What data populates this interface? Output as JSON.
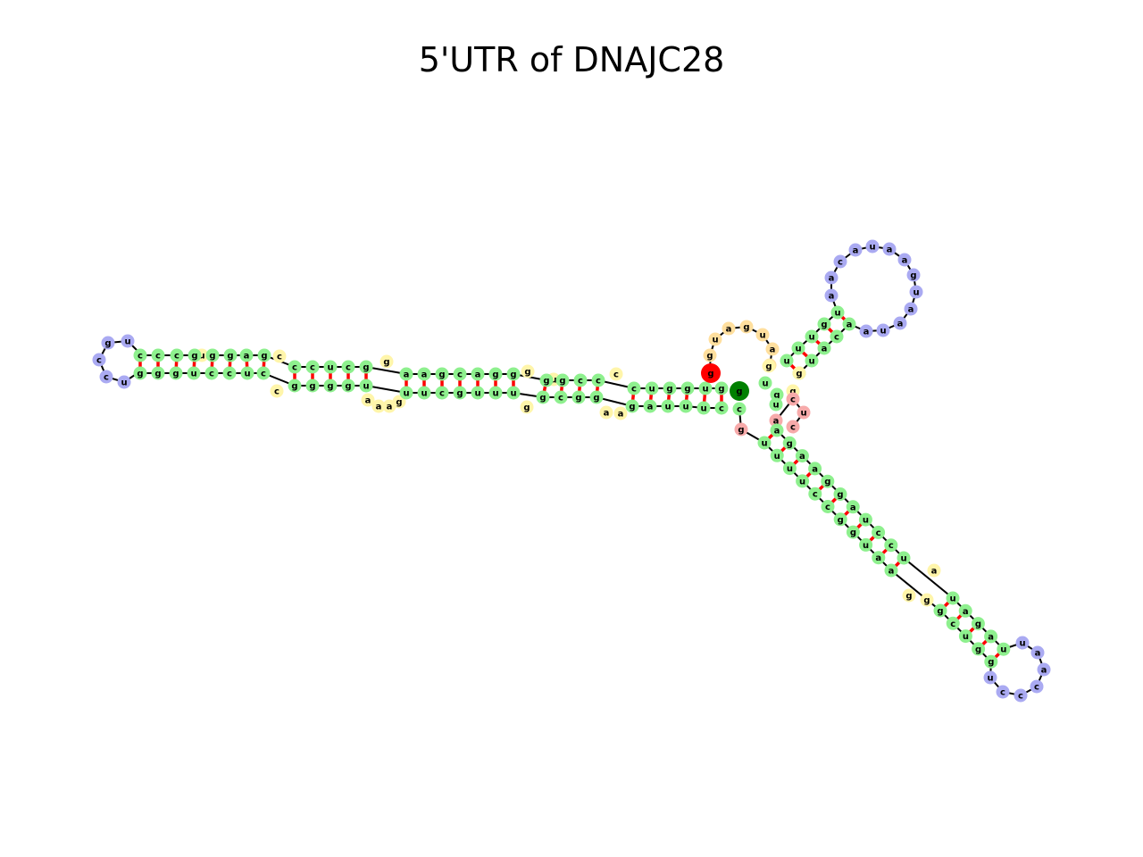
{
  "title": "5'UTR of DNAJC28",
  "colors": {
    "stem": "#8ef08e",
    "hairpin_loop": "#aaaaf2",
    "interior_loop": "#fff5aa",
    "multiloop": "#ffdf9e",
    "unpaired_end": "#f7aaaa",
    "five_prime_end": "#ff0000",
    "three_prime_end": "#008000",
    "base_pair_bond": "#ff0000",
    "backbone": "#000000"
  },
  "five_prime_base": "g",
  "three_prime_base": "g",
  "structure": {
    "exterior_5prime_tail": "g",
    "left_arm": {
      "outer_stem": {
        "strand_5": "guggug",
        "strand_3": "cuuugg"
      },
      "loop_1": {
        "strand_5": "c",
        "strand_3": "aa"
      },
      "stem_2": {
        "strand_5": "gcc",
        "strand_3": "ggg"
      },
      "loop_2": {
        "strand_5": "c",
        "strand_3": ""
      },
      "stem_3": {
        "strand_5": "c",
        "strand_3": "g"
      },
      "loop_3": {
        "strand_5": "g",
        "strand_3": "gu"
      },
      "stem_4": {
        "strand_5": "ccgacgg",
        "strand_3": "uuuuguu"
      },
      "loop_4": {
        "strand_5": "ac",
        "strand_3": "aag"
      },
      "stem_5": {
        "strand_5": "gcuccc",
        "strand_3": "gggucc"
      },
      "loop_6": {
        "strand_5": "c",
        "strand_3": "c"
      },
      "stem_6": {
        "strand_5": "ggag",
        "strand_3": "cuuc"
      },
      "loop_7": {
        "strand_5": "ugccc",
        "strand_3": "ucggg"
      },
      "hairpin": "gucuc"
    },
    "multiloop_segment": "gguagua",
    "upper_arm": {
      "stem": {
        "strand_5": "guugu",
        "strand_3": "uuugg"
      },
      "stem_outer": {
        "strand_5": "ug",
        "strand_3": "ca"
      },
      "hairpin": "aacauaagua"
    },
    "junction_unpaired": "ucaa",
    "lower_arm": {
      "stem_1": {
        "strand_5": "uuccuggcuaa",
        "strand_3": "aggacccucu"
      },
      "loop": {
        "strand_5": "uaa",
        "strand_3": "g"
      },
      "stem_2": {
        "strand_5": "cgg",
        "strand_3": "guu"
      },
      "hairpin": "cuaacccu"
    },
    "exterior_3prime_tail": "cg"
  },
  "nucleotides_upper_left_strand": [
    "c",
    "c",
    "c",
    "g",
    "u",
    "g",
    "g",
    "a",
    "g",
    "c",
    "c",
    "c",
    "u",
    "c",
    "g",
    "g",
    "a",
    "a",
    "g",
    "c",
    "a",
    "g",
    "g",
    "g",
    "c",
    "g",
    "g",
    "c",
    "c",
    "c",
    "u",
    "g",
    "g",
    "u",
    "u",
    "g",
    "g",
    "u",
    "g",
    "g"
  ],
  "nucleotides_lower_left_strand": [
    "g",
    "g",
    "g",
    "u",
    "c",
    "c",
    "u",
    "c",
    "g",
    "g",
    "g",
    "g",
    "u",
    "a",
    "a",
    "g",
    "u",
    "u",
    "c",
    "g",
    "u",
    "u",
    "u",
    "g",
    "g",
    "g",
    "c",
    "g",
    "g",
    "a",
    "a",
    "g",
    "a",
    "u",
    "u",
    "g",
    "u",
    "c"
  ],
  "nucleotides_upper_arm": [
    "u",
    "g",
    "g",
    "u",
    "u",
    "a",
    "c",
    "a",
    "a",
    "u",
    "a",
    "a",
    "g",
    "u",
    "a",
    "u",
    "a",
    "a",
    "c",
    "a",
    "u",
    "u",
    "g",
    "g"
  ],
  "nucleotides_lower_arm": [
    "u",
    "u",
    "u",
    "u",
    "c",
    "c",
    "g",
    "g",
    "u",
    "a",
    "a",
    "g",
    "u",
    "c",
    "c",
    "u",
    "a",
    "a",
    "c",
    "c",
    "c",
    "u",
    "g",
    "g",
    "c",
    "a",
    "c",
    "u",
    "u",
    "c",
    "c",
    "c",
    "a",
    "g",
    "g",
    "u",
    "u",
    "u",
    "g"
  ],
  "nucleotides_hairpin_left": [
    "c",
    "c",
    "u",
    "u",
    "g",
    "g"
  ],
  "nucleotides_multiloop": [
    "g",
    "u",
    "a",
    "g",
    "u",
    "a",
    "g"
  ],
  "nucleotides_junction": [
    "a",
    "c",
    "u",
    "c",
    "a",
    "g"
  ]
}
